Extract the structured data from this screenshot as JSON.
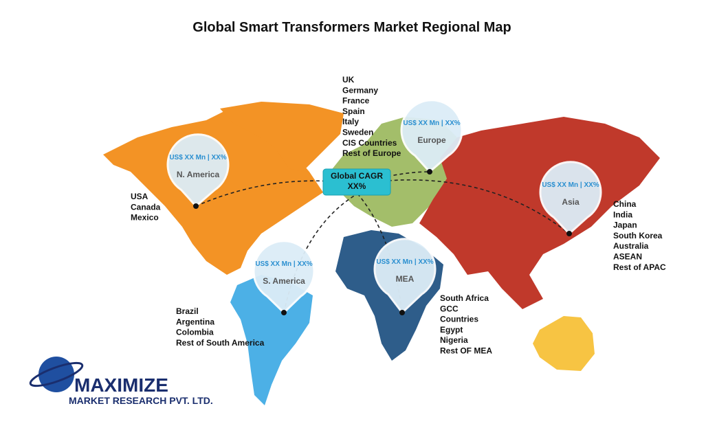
{
  "title": "Global Smart Transformers Market Regional Map",
  "global_cagr": {
    "label": "Global CAGR",
    "value": "XX%"
  },
  "regions": [
    {
      "name": "N. America",
      "pin_label": "US$ XX Mn | XX%",
      "countries": [
        "USA",
        "Canada",
        "Mexico"
      ]
    },
    {
      "name": "Europe",
      "pin_label": "US$ XX Mn | XX%",
      "countries": [
        "UK",
        "Germany",
        "France",
        "Spain",
        "Italy",
        "Sweden",
        "CIS Countries",
        "Rest of Europe"
      ]
    },
    {
      "name": "Asia",
      "pin_label": "US$ XX Mn | XX%",
      "countries": [
        "China",
        "India",
        "Japan",
        "South Korea",
        "Australia",
        "ASEAN",
        "Rest of APAC"
      ]
    },
    {
      "name": "S. America",
      "pin_label": "US$ XX Mn | XX%",
      "countries": [
        "Brazil",
        "Argentina",
        "Colombia",
        "Rest of South America"
      ]
    },
    {
      "name": "MEA",
      "pin_label": "US$ XX Mn | XX%",
      "countries": [
        "South Africa",
        "GCC",
        "Countries",
        "Egypt",
        "Nigeria",
        "Rest OF MEA"
      ]
    }
  ],
  "logo": {
    "name": "MAXIMIZE",
    "subtitle": "MARKET RESEARCH PVT. LTD."
  }
}
